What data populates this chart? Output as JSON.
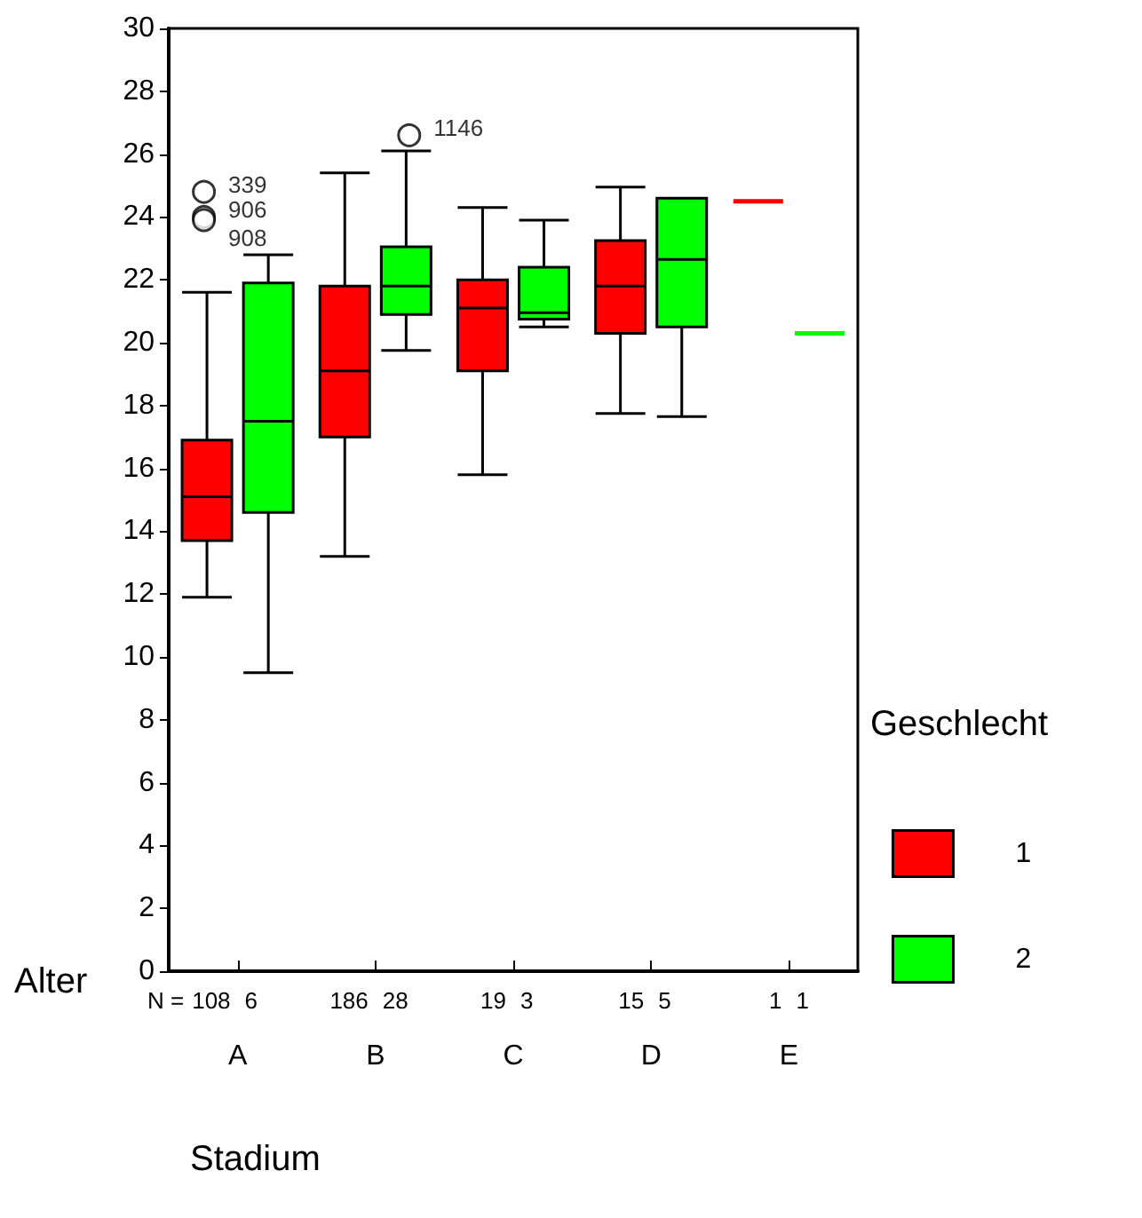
{
  "chart_data": {
    "type": "box",
    "xlabel": "Stadium",
    "ylabel": "Alter",
    "legend_title": "Geschlecht",
    "legend": "right",
    "grid": false,
    "categories": [
      "A",
      "B",
      "C",
      "D",
      "E"
    ],
    "ylim": [
      0,
      30
    ],
    "yticks": [
      0,
      2,
      4,
      6,
      8,
      10,
      12,
      14,
      16,
      18,
      20,
      22,
      24,
      26,
      28,
      30
    ],
    "series": [
      {
        "name": "1",
        "color": "#ff0000",
        "boxes": [
          {
            "low": 11.9,
            "q1": 13.7,
            "median": 15.1,
            "q3": 16.9,
            "high": 21.6,
            "outliers": [
              24.8,
              24.0,
              23.9
            ]
          },
          {
            "low": 13.2,
            "q1": 17.0,
            "median": 19.1,
            "q3": 21.8,
            "high": 25.4
          },
          {
            "low": 15.8,
            "q1": 19.1,
            "median": 21.1,
            "q3": 22.0,
            "high": 24.3
          },
          {
            "low": 17.75,
            "q1": 20.3,
            "median": 21.8,
            "q3": 23.25,
            "high": 24.95
          },
          {
            "low": 24.5,
            "q1": 24.5,
            "median": 24.5,
            "q3": 24.5,
            "high": 24.5
          }
        ]
      },
      {
        "name": "2",
        "color": "#00ff00",
        "boxes": [
          {
            "low": 9.5,
            "q1": 14.6,
            "median": 17.5,
            "q3": 21.9,
            "high": 22.8
          },
          {
            "low": 19.75,
            "q1": 20.9,
            "median": 21.8,
            "q3": 23.05,
            "high": 26.1,
            "outliers": [
              26.6
            ]
          },
          {
            "low": 20.5,
            "q1": 20.75,
            "median": 20.95,
            "q3": 22.4,
            "high": 23.9
          },
          {
            "low": 17.65,
            "q1": 20.5,
            "median": 22.65,
            "q3": 24.6,
            "high": 24.6
          },
          {
            "low": 20.3,
            "q1": 20.3,
            "median": 20.3,
            "q3": 20.3,
            "high": 20.3
          }
        ]
      }
    ],
    "annotations": [
      "339",
      "906",
      "908",
      "1146",
      "N =",
      "108",
      "6",
      "186",
      "28",
      "19",
      "3",
      "15",
      "5",
      "1",
      "1"
    ]
  }
}
